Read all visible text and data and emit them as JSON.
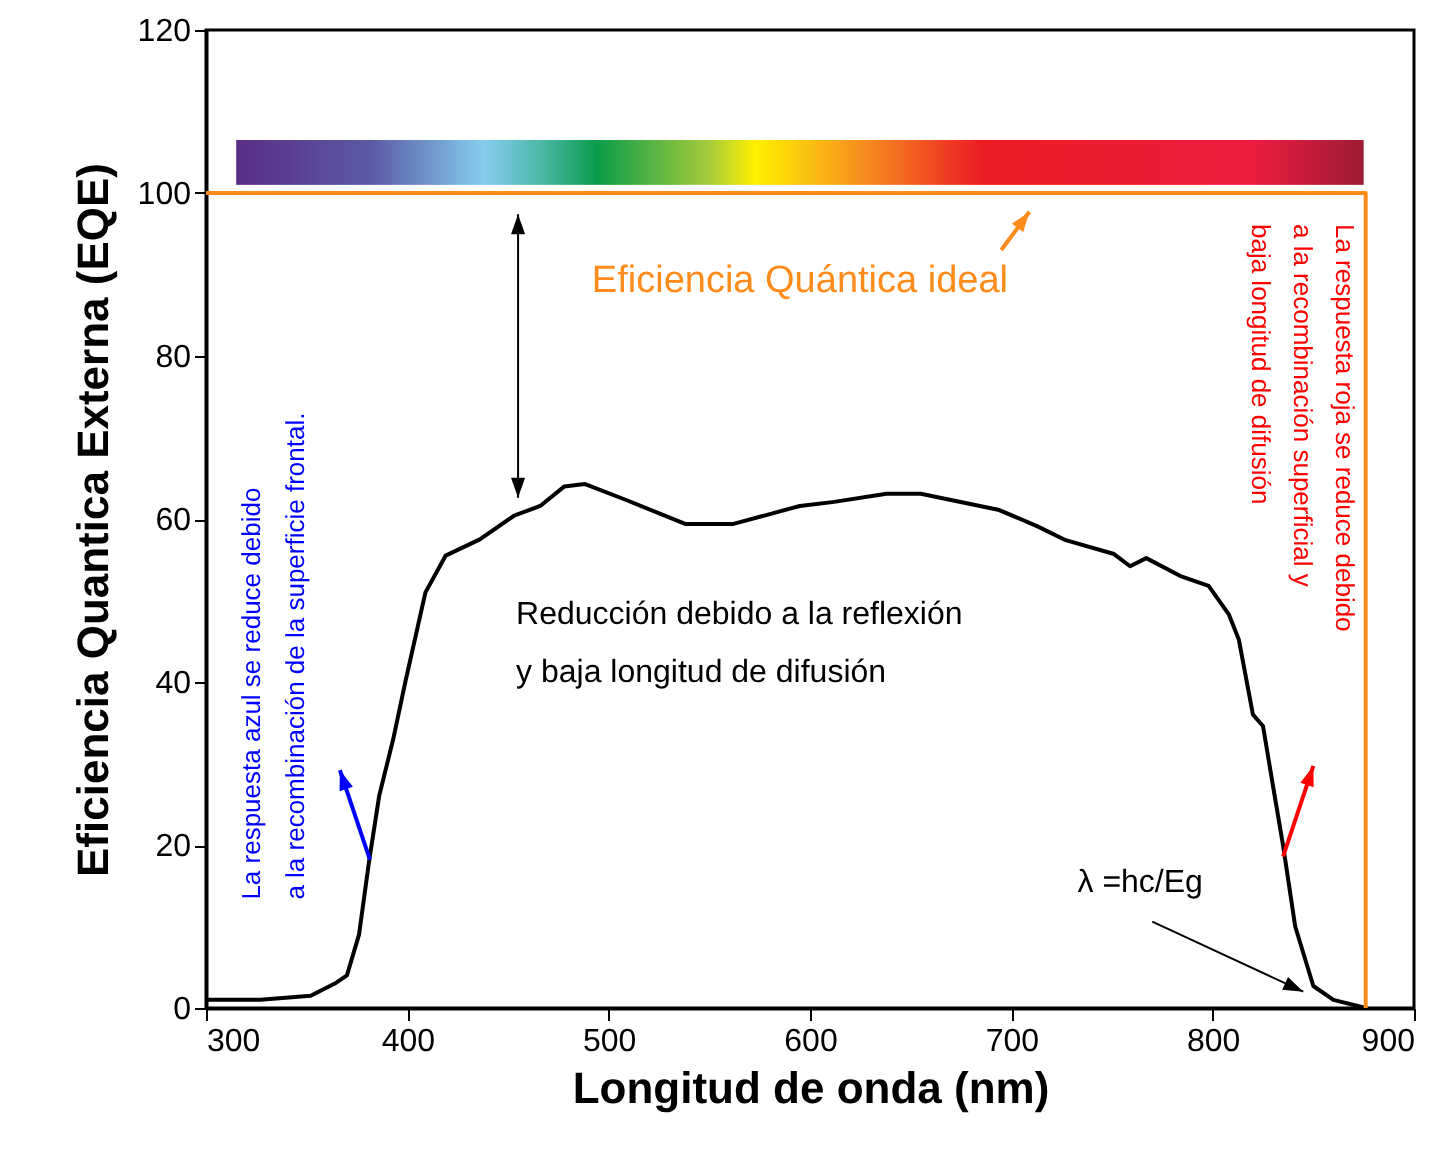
{
  "chart_data": {
    "type": "line",
    "xlabel": "Longitud de onda (nm)",
    "ylabel": "Eficiencia Quantica Externa (EQE)",
    "xlim": [
      300,
      900
    ],
    "xticks": [
      300,
      400,
      500,
      600,
      700,
      800,
      900
    ],
    "ylim": [
      0,
      120
    ],
    "yticks": [
      0,
      20,
      40,
      60,
      80,
      100,
      120
    ],
    "grid": false,
    "line_style": "solid",
    "series": [
      {
        "color": "#000000",
        "x": [
          300,
          327,
          352,
          364,
          370,
          376,
          381,
          386,
          393,
          399,
          409,
          419,
          436,
          453,
          466,
          478,
          488,
          509,
          538,
          562,
          595,
          612,
          638,
          655,
          694,
          713,
          727,
          751,
          759,
          767,
          784,
          798,
          808,
          813,
          820,
          825,
          830,
          835,
          841,
          850,
          860,
          876
        ],
        "values": [
          1,
          1,
          1.5,
          3,
          4,
          9,
          18,
          26,
          33,
          40,
          51,
          55.5,
          57.5,
          60.4,
          61.6,
          64,
          64.3,
          62.3,
          59.4,
          59.4,
          61.6,
          62.1,
          63.1,
          63.1,
          61.1,
          59.1,
          57.4,
          55.7,
          54.2,
          55.2,
          53,
          51.8,
          48.3,
          45.2,
          36,
          34.6,
          27.2,
          19.9,
          10,
          2.7,
          1,
          0
        ]
      },
      {
        "color": "#ff8c1a",
        "x": [
          300,
          876,
          876
        ],
        "values": [
          100,
          100,
          0
        ]
      }
    ],
    "annotations": [
      "Eficiencia Quántica ideal",
      "Reducción debido a la reflexión\ny baja longitud de difusión",
      {
        "text": "λ =hc/Eg",
        "x": 845,
        "y": 2
      },
      {
        "text": "La respuesta azul se reduce debido\na la recombinación de la superficie frontal.",
        "x": 381.4,
        "y": 18.2
      },
      "La respuesta roja se reduce debido\na la recombinación superficial y\nbaja longitud de difusión"
    ]
  }
}
